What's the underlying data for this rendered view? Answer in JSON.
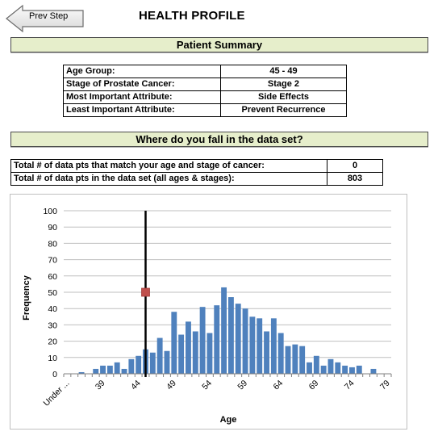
{
  "nav": {
    "prev_label": "Prev Step"
  },
  "header": {
    "title": "HEALTH PROFILE"
  },
  "patient_summary": {
    "heading": "Patient Summary",
    "rows": [
      {
        "label": "Age Group:",
        "value": "45 - 49"
      },
      {
        "label": "Stage of Prostate Cancer:",
        "value": "Stage 2"
      },
      {
        "label": "Most Important Attribute:",
        "value": "Side Effects"
      },
      {
        "label": "Least Important Attribute:",
        "value": "Prevent Recurrence"
      }
    ]
  },
  "dataset": {
    "heading": "Where do you fall in the data set?",
    "rows": [
      {
        "label": "Total # of data pts that match your age and stage of cancer:",
        "value": "0"
      },
      {
        "label": "Total # of data pts in the data set (all ages & stages):",
        "value": "803"
      }
    ]
  },
  "chart_data": {
    "type": "bar",
    "xlabel": "Age",
    "ylabel": "Frequency",
    "ylim": [
      0,
      100
    ],
    "yticks": [
      0,
      10,
      20,
      30,
      40,
      50,
      60,
      70,
      80,
      90,
      100
    ],
    "grid": true,
    "bar_color": "#4f81bd",
    "categories": [
      "Under ...",
      "35",
      "36",
      "37",
      "38",
      "39",
      "40",
      "41",
      "42",
      "43",
      "44",
      "45",
      "46",
      "47",
      "48",
      "49",
      "50",
      "51",
      "52",
      "53",
      "54",
      "55",
      "56",
      "57",
      "58",
      "59",
      "60",
      "61",
      "62",
      "63",
      "64",
      "65",
      "66",
      "67",
      "68",
      "69",
      "70",
      "71",
      "72",
      "73",
      "74",
      "75",
      "76",
      "77",
      "78",
      "79"
    ],
    "values": [
      0,
      0,
      1,
      0,
      3,
      5,
      5,
      7,
      3,
      9,
      11,
      15,
      13,
      22,
      14,
      38,
      24,
      32,
      26,
      41,
      25,
      42,
      53,
      47,
      43,
      40,
      35,
      34,
      26,
      34,
      25,
      17,
      18,
      17,
      7,
      11,
      5,
      9,
      7,
      5,
      4,
      5,
      0,
      3,
      0,
      0
    ],
    "xtick_labels": [
      {
        "index": 0,
        "label": "Under ..."
      },
      {
        "index": 5,
        "label": "39"
      },
      {
        "index": 10,
        "label": "44"
      },
      {
        "index": 15,
        "label": "49"
      },
      {
        "index": 20,
        "label": "54"
      },
      {
        "index": 25,
        "label": "59"
      },
      {
        "index": 30,
        "label": "64"
      },
      {
        "index": 35,
        "label": "69"
      },
      {
        "index": 40,
        "label": "74"
      },
      {
        "index": 45,
        "label": "79"
      }
    ],
    "marker": {
      "category_index": 11,
      "y": 50,
      "color": "#c0504d"
    },
    "vline": {
      "category_index": 11,
      "color": "#000000"
    }
  }
}
